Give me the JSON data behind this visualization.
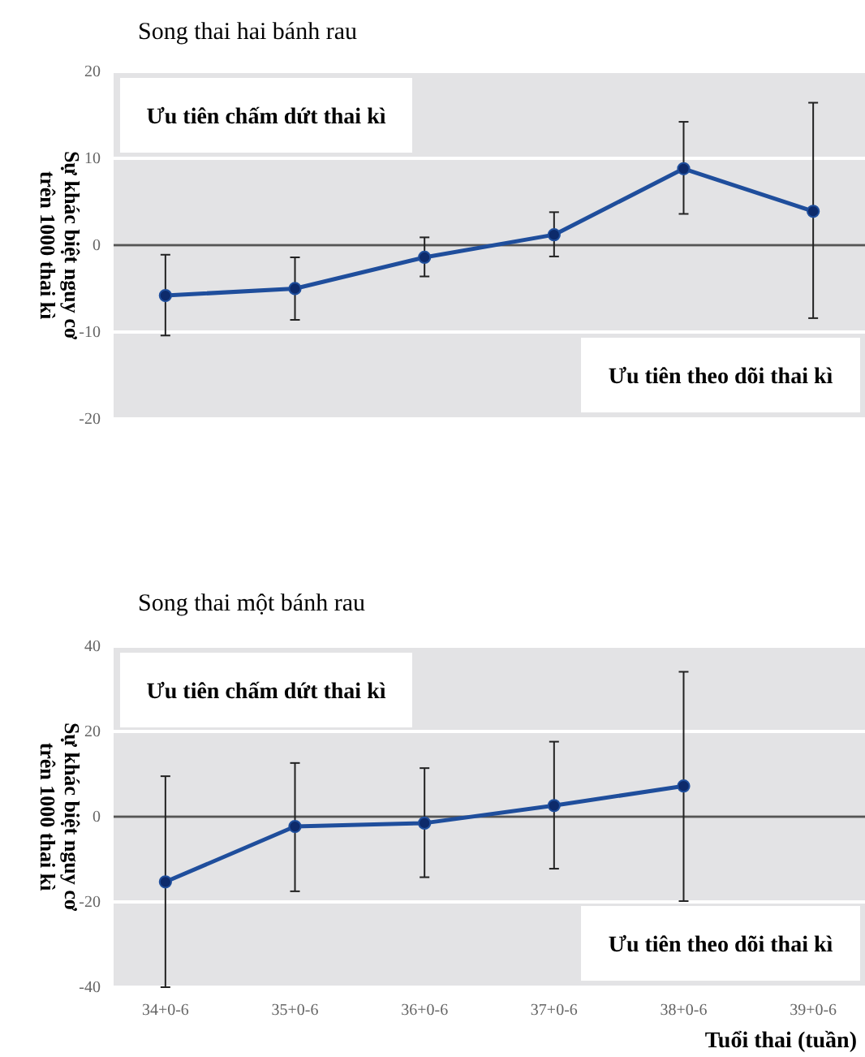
{
  "chart_data": [
    {
      "type": "line",
      "title": "Song thai hai bánh rau",
      "ylabel": "Sự khác biệt nguy cơ\ntrên 1000 thai kì",
      "categories": [
        null,
        null,
        null,
        null,
        null,
        null
      ],
      "tick_labels": "y",
      "series": [
        {
          "color": "#1f4e9c",
          "values": [
            -5.8,
            -5.0,
            -1.4,
            1.2,
            8.8,
            3.9
          ],
          "errors": [
            [
              -10.4,
              -1.1
            ],
            [
              -8.6,
              -1.4
            ],
            [
              -3.6,
              0.9
            ],
            [
              -1.3,
              3.8
            ],
            [
              3.6,
              14.2
            ],
            [
              -8.4,
              16.4
            ]
          ]
        }
      ],
      "ylim": [
        -20,
        20
      ],
      "yticks": [
        -20,
        -10,
        0,
        10,
        20
      ],
      "grid": "y",
      "marker": "circle",
      "line_style": "solid",
      "ref_lines": [
        {
          "axis": "y",
          "value": 0,
          "color": "#555555"
        }
      ],
      "annotations": [
        "Ưu tiên chấm dứt thai kì",
        "Ưu tiên theo dõi thai kì"
      ]
    },
    {
      "type": "line",
      "title": "Song thai một bánh rau",
      "ylabel": "Sự khác biệt nguy cơ\ntrên 1000 thai kì",
      "xlabel": "Tuổi thai (tuần)",
      "categories": [
        "34+0-6",
        "35+0-6",
        "36+0-6",
        "37+0-6",
        "38+0-6",
        "39+0-6"
      ],
      "series": [
        {
          "color": "#1f4e9c",
          "values": [
            -15.3,
            -2.3,
            -1.5,
            2.6,
            7.2,
            null
          ],
          "errors": [
            [
              -40,
              9.5
            ],
            [
              -17.5,
              12.6
            ],
            [
              -14.2,
              11.4
            ],
            [
              -12.2,
              17.6
            ],
            [
              -19.8,
              34
            ],
            null
          ]
        }
      ],
      "ylim": [
        -40,
        40
      ],
      "yticks": [
        -40,
        -20,
        0,
        20,
        40
      ],
      "grid": "y",
      "marker": "circle",
      "line_style": "solid",
      "ref_lines": [
        {
          "axis": "y",
          "value": 0,
          "color": "#555555"
        }
      ],
      "annotations": [
        "Ưu tiên chấm dứt thai kì",
        "Ưu tiên theo dõi thai kì"
      ]
    }
  ]
}
